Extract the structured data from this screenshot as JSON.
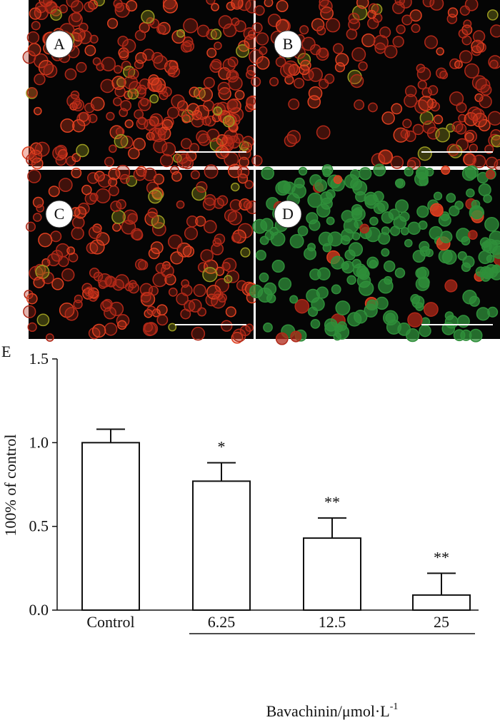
{
  "panels": [
    "A",
    "B",
    "C",
    "D"
  ],
  "chart_data": {
    "type": "bar",
    "panel_label": "E",
    "ylabel": "100% of control",
    "xlabel": {
      "text": "Bavachinin/μmol·L",
      "superscript": "-1"
    },
    "categories": [
      "Control",
      "6.25",
      "12.5",
      "25"
    ],
    "values": [
      1.0,
      0.77,
      0.43,
      0.09
    ],
    "errors": [
      0.08,
      0.11,
      0.12,
      0.13
    ],
    "significance": [
      null,
      "*",
      "**",
      "**"
    ],
    "color": "#ffffff",
    "ylim": [
      0,
      1.5
    ],
    "yticks": [
      {
        "value": 0,
        "label": "0.0"
      },
      0.5,
      {
        "value": 1,
        "label": "1.0"
      },
      1.5
    ],
    "grid": false
  }
}
